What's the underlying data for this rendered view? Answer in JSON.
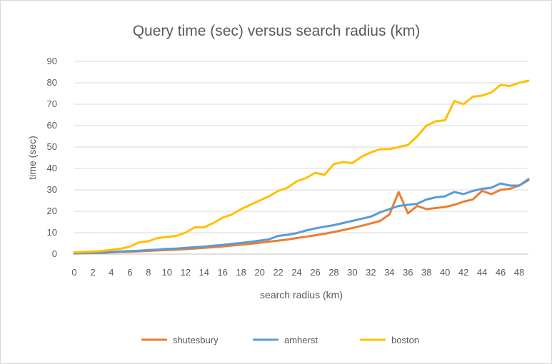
{
  "chart_data": {
    "type": "line",
    "title": "Query time (sec) versus search radius (km)",
    "xlabel": "search radius (km)",
    "ylabel": "time (sec)",
    "xlim": [
      0,
      49
    ],
    "ylim": [
      0,
      90
    ],
    "x_ticks": [
      0,
      2,
      4,
      6,
      8,
      10,
      12,
      14,
      16,
      18,
      20,
      22,
      24,
      26,
      28,
      30,
      32,
      34,
      36,
      38,
      40,
      42,
      44,
      46,
      48
    ],
    "y_ticks": [
      0,
      10,
      20,
      30,
      40,
      50,
      60,
      70,
      80,
      90
    ],
    "grid": "horizontal",
    "legend_position": "bottom",
    "x": [
      0,
      1,
      2,
      3,
      4,
      5,
      6,
      7,
      8,
      9,
      10,
      11,
      12,
      13,
      14,
      15,
      16,
      17,
      18,
      19,
      20,
      21,
      22,
      23,
      24,
      25,
      26,
      27,
      28,
      29,
      30,
      31,
      32,
      33,
      34,
      35,
      36,
      37,
      38,
      39,
      40,
      41,
      42,
      43,
      44,
      45,
      46,
      47,
      48,
      49
    ],
    "series": [
      {
        "name": "shutesbury",
        "color": "#ed7d31",
        "values": [
          0.3,
          0.4,
          0.5,
          0.6,
          0.8,
          1.0,
          1.1,
          1.3,
          1.5,
          1.7,
          1.9,
          2.1,
          2.3,
          2.6,
          2.9,
          3.2,
          3.6,
          4.0,
          4.4,
          4.8,
          5.3,
          5.8,
          6.3,
          6.8,
          7.5,
          8.1,
          8.8,
          9.5,
          10.3,
          11.2,
          12.2,
          13.2,
          14.3,
          15.5,
          18.5,
          29.0,
          19.0,
          22.5,
          21.0,
          21.5,
          22.0,
          23.0,
          24.5,
          25.5,
          29.5,
          28.0,
          30.0,
          30.5,
          32.0,
          34.5
        ]
      },
      {
        "name": "amherst",
        "color": "#5b9bd5",
        "values": [
          0.3,
          0.5,
          0.6,
          0.8,
          1.0,
          1.2,
          1.4,
          1.6,
          1.9,
          2.1,
          2.4,
          2.6,
          2.9,
          3.2,
          3.5,
          3.9,
          4.3,
          4.8,
          5.2,
          5.7,
          6.3,
          6.9,
          8.5,
          9.0,
          9.8,
          11.0,
          12.0,
          12.8,
          13.5,
          14.5,
          15.5,
          16.5,
          17.5,
          19.5,
          21.0,
          22.5,
          23.0,
          23.5,
          25.5,
          26.5,
          27.0,
          29.0,
          28.0,
          29.5,
          30.5,
          31.0,
          33.0,
          32.0,
          32.0,
          35.0
        ]
      },
      {
        "name": "boston",
        "color": "#ffc000",
        "values": [
          0.8,
          1.0,
          1.2,
          1.5,
          2.0,
          2.5,
          3.5,
          5.5,
          6.0,
          7.5,
          8.0,
          8.5,
          10.0,
          12.5,
          12.5,
          14.5,
          17.0,
          18.5,
          21.0,
          23.0,
          25.0,
          27.0,
          29.5,
          31.0,
          34.0,
          35.5,
          38.0,
          37.0,
          42.0,
          43.0,
          42.5,
          45.5,
          47.5,
          49.0,
          49.0,
          50.0,
          51.0,
          55.0,
          60.0,
          62.0,
          62.5,
          71.5,
          70.0,
          73.5,
          74.0,
          75.5,
          79.0,
          78.5,
          80.0,
          81.0
        ]
      }
    ]
  }
}
